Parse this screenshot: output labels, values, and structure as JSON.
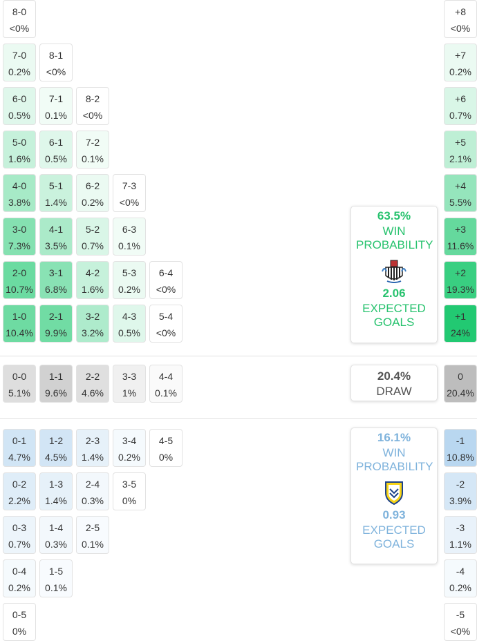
{
  "home_wins": {
    "rows": [
      [
        {
          "score": "8-0",
          "prob": "<0%"
        }
      ],
      [
        {
          "score": "7-0",
          "prob": "0.2%"
        },
        {
          "score": "8-1",
          "prob": "<0%"
        }
      ],
      [
        {
          "score": "6-0",
          "prob": "0.5%"
        },
        {
          "score": "7-1",
          "prob": "0.1%"
        },
        {
          "score": "8-2",
          "prob": "<0%"
        }
      ],
      [
        {
          "score": "5-0",
          "prob": "1.6%"
        },
        {
          "score": "6-1",
          "prob": "0.5%"
        },
        {
          "score": "7-2",
          "prob": "0.1%"
        }
      ],
      [
        {
          "score": "4-0",
          "prob": "3.8%"
        },
        {
          "score": "5-1",
          "prob": "1.4%"
        },
        {
          "score": "6-2",
          "prob": "0.2%"
        },
        {
          "score": "7-3",
          "prob": "<0%"
        }
      ],
      [
        {
          "score": "3-0",
          "prob": "7.3%"
        },
        {
          "score": "4-1",
          "prob": "3.5%"
        },
        {
          "score": "5-2",
          "prob": "0.7%"
        },
        {
          "score": "6-3",
          "prob": "0.1%"
        }
      ],
      [
        {
          "score": "2-0",
          "prob": "10.7%"
        },
        {
          "score": "3-1",
          "prob": "6.8%"
        },
        {
          "score": "4-2",
          "prob": "1.6%"
        },
        {
          "score": "5-3",
          "prob": "0.2%"
        },
        {
          "score": "6-4",
          "prob": "<0%"
        }
      ],
      [
        {
          "score": "1-0",
          "prob": "10.4%"
        },
        {
          "score": "2-1",
          "prob": "9.9%"
        },
        {
          "score": "3-2",
          "prob": "3.2%"
        },
        {
          "score": "4-3",
          "prob": "0.5%"
        },
        {
          "score": "5-4",
          "prob": "<0%"
        }
      ]
    ],
    "margins": [
      {
        "diff": "+8",
        "prob": "<0%"
      },
      {
        "diff": "+7",
        "prob": "0.2%"
      },
      {
        "diff": "+6",
        "prob": "0.7%"
      },
      {
        "diff": "+5",
        "prob": "2.1%"
      },
      {
        "diff": "+4",
        "prob": "5.5%"
      },
      {
        "diff": "+3",
        "prob": "11.6%"
      },
      {
        "diff": "+2",
        "prob": "19.3%"
      },
      {
        "diff": "+1",
        "prob": "24%"
      }
    ],
    "summary": {
      "win_pct": "63.5%",
      "win_label": "WIN PROBABILITY",
      "xg": "2.06",
      "xg_label": "EXPECTED GOALS"
    }
  },
  "draws": {
    "rows": [
      [
        {
          "score": "0-0",
          "prob": "5.1%"
        },
        {
          "score": "1-1",
          "prob": "9.6%"
        },
        {
          "score": "2-2",
          "prob": "4.6%"
        },
        {
          "score": "3-3",
          "prob": "1%"
        },
        {
          "score": "4-4",
          "prob": "0.1%"
        }
      ]
    ],
    "margins": [
      {
        "diff": "0",
        "prob": "20.4%"
      }
    ],
    "summary": {
      "pct": "20.4%",
      "label": "DRAW"
    }
  },
  "away_wins": {
    "rows": [
      [
        {
          "score": "0-1",
          "prob": "4.7%"
        },
        {
          "score": "1-2",
          "prob": "4.5%"
        },
        {
          "score": "2-3",
          "prob": "1.4%"
        },
        {
          "score": "3-4",
          "prob": "0.2%"
        },
        {
          "score": "4-5",
          "prob": "0%"
        }
      ],
      [
        {
          "score": "0-2",
          "prob": "2.2%"
        },
        {
          "score": "1-3",
          "prob": "1.4%"
        },
        {
          "score": "2-4",
          "prob": "0.3%"
        },
        {
          "score": "3-5",
          "prob": "0%"
        }
      ],
      [
        {
          "score": "0-3",
          "prob": "0.7%"
        },
        {
          "score": "1-4",
          "prob": "0.3%"
        },
        {
          "score": "2-5",
          "prob": "0.1%"
        }
      ],
      [
        {
          "score": "0-4",
          "prob": "0.2%"
        },
        {
          "score": "1-5",
          "prob": "0.1%"
        }
      ],
      [
        {
          "score": "0-5",
          "prob": "0%"
        }
      ]
    ],
    "margins": [
      {
        "diff": "-1",
        "prob": "10.8%"
      },
      {
        "diff": "-2",
        "prob": "3.9%"
      },
      {
        "diff": "-3",
        "prob": "1.1%"
      },
      {
        "diff": "-4",
        "prob": "0.2%"
      },
      {
        "diff": "-5",
        "prob": "<0%"
      }
    ],
    "summary": {
      "win_pct": "16.1%",
      "win_label": "WIN PROBABILITY",
      "xg": "0.93",
      "xg_label": "EXPECTED GOALS"
    }
  }
}
